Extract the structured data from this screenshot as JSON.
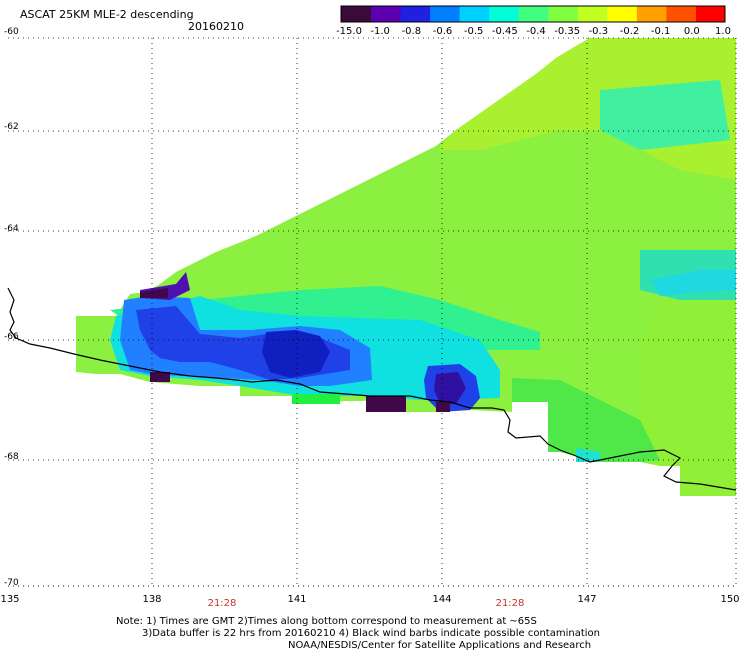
{
  "header": {
    "title": "ASCAT 25KM MLE-2 descending",
    "date": "20160210"
  },
  "colorbar": {
    "labels": [
      "-15.0",
      "-1.0",
      "-0.8",
      "-0.6",
      "-0.5",
      "-0.45",
      "-0.4",
      "-0.35",
      "-0.3",
      "-0.2",
      "-0.1",
      "0.0",
      "1.0"
    ],
    "colors": [
      "#3a0a3a",
      "#5a00b0",
      "#2020e0",
      "#0080ff",
      "#00d0ff",
      "#00ffd8",
      "#40ff80",
      "#80ff40",
      "#c0ff20",
      "#ffff00",
      "#ffa000",
      "#ff5000",
      "#ff0000"
    ]
  },
  "axes": {
    "lat_labels": [
      "-60",
      "-62",
      "-64",
      "-66",
      "-68",
      "-70"
    ],
    "lon_labels": [
      "135",
      "138",
      "141",
      "144",
      "147",
      "150"
    ],
    "time_labels": [
      "21:28",
      "21:28"
    ]
  },
  "notes": {
    "line1": "Note: 1) Times are GMT 2)Times along bottom correspond to measurement at ~65S",
    "line2": "3)Data buffer is 22 hrs from 20160210 4) Black wind barbs indicate possible contamination",
    "line3": "NOAA/NESDIS/Center for Satellite Applications and Research"
  }
}
